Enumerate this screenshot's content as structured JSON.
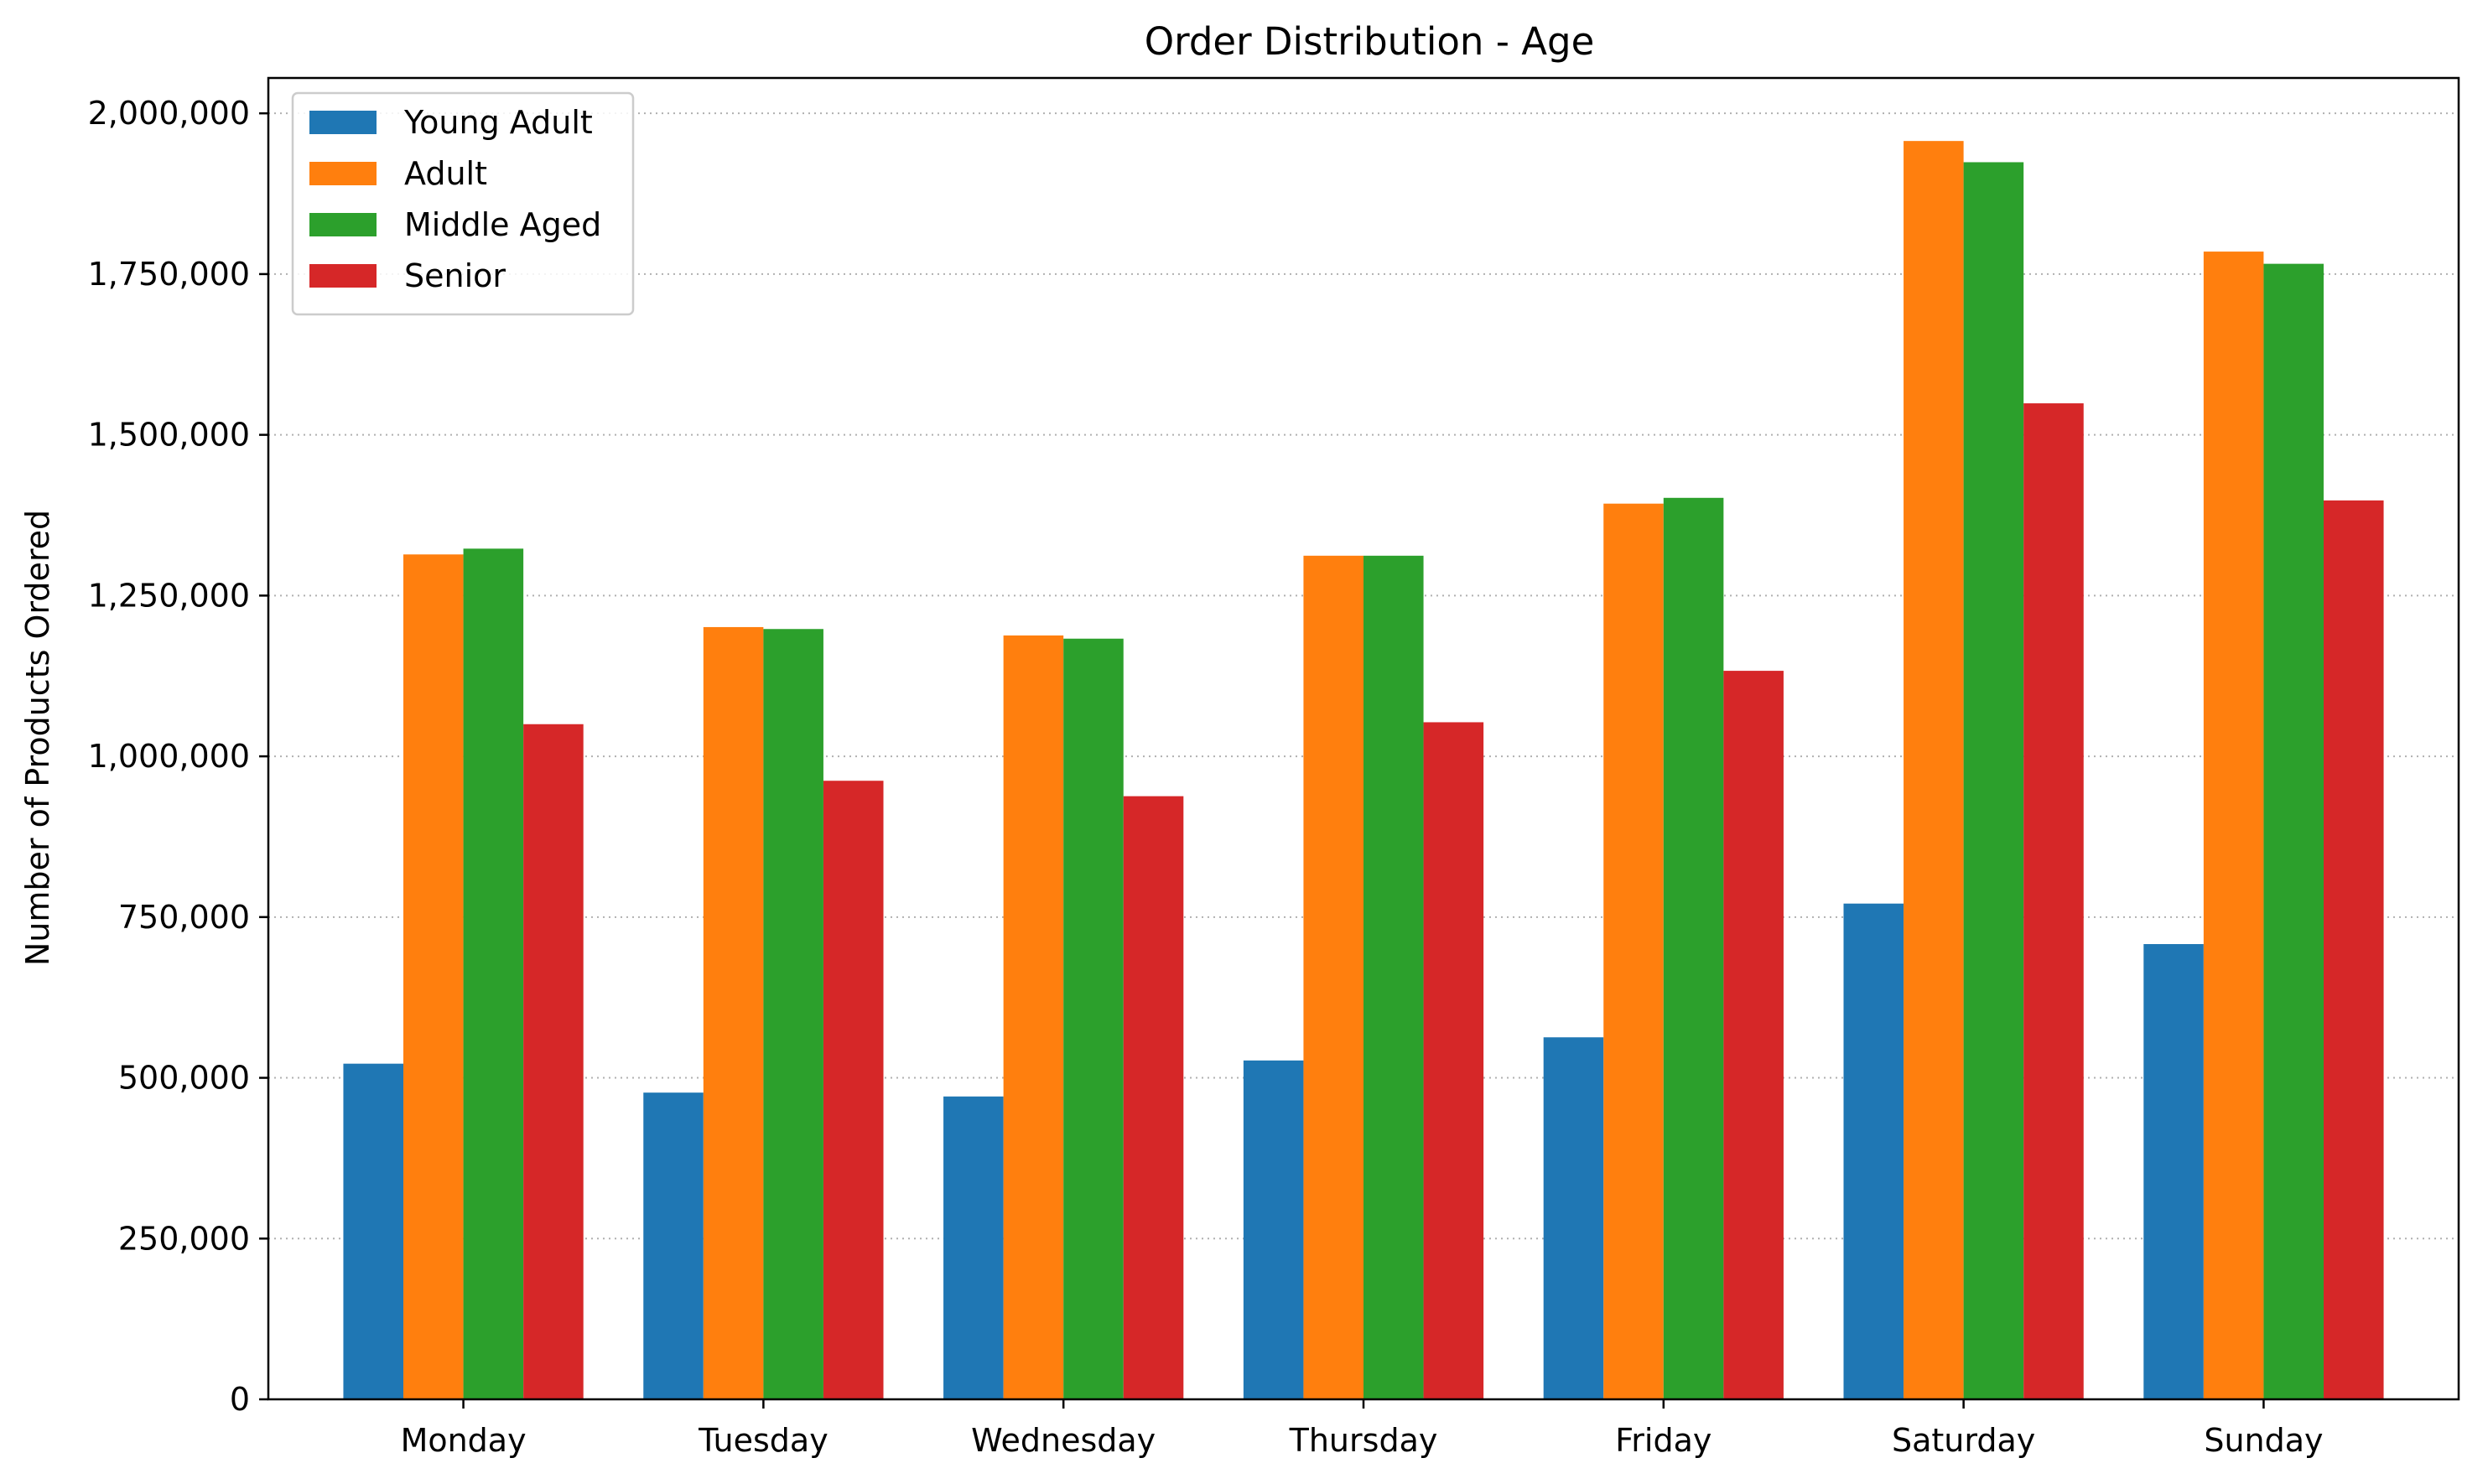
{
  "chart_data": {
    "type": "bar",
    "title": "Order Distribution - Age",
    "xlabel": "",
    "ylabel": "Number of Products Ordered",
    "categories": [
      "Monday",
      "Tuesday",
      "Wednesday",
      "Thursday",
      "Friday",
      "Saturday",
      "Sunday"
    ],
    "series": [
      {
        "name": "Young Adult",
        "color": "#1f77b4",
        "values": [
          522000,
          477000,
          471000,
          527000,
          563000,
          771000,
          708000
        ]
      },
      {
        "name": "Adult",
        "color": "#ff7f0e",
        "values": [
          1314000,
          1201000,
          1188000,
          1312000,
          1393000,
          1957000,
          1785000
        ]
      },
      {
        "name": "Middle Aged",
        "color": "#2ca02c",
        "values": [
          1323000,
          1198000,
          1183000,
          1312000,
          1402000,
          1924000,
          1766000
        ]
      },
      {
        "name": "Senior",
        "color": "#d62728",
        "values": [
          1050000,
          962000,
          938000,
          1053000,
          1133000,
          1549000,
          1398000
        ]
      }
    ],
    "yticks": [
      0,
      250000,
      500000,
      750000,
      1000000,
      1250000,
      1500000,
      1750000,
      2000000
    ],
    "ytick_labels": [
      "0",
      "250,000",
      "500,000",
      "750,000",
      "1,000,000",
      "1,250,000",
      "1,500,000",
      "1,750,000",
      "2,000,000"
    ],
    "ylim": [
      0,
      2055000
    ],
    "grid": "y-dotted",
    "legend_position": "top-left"
  }
}
